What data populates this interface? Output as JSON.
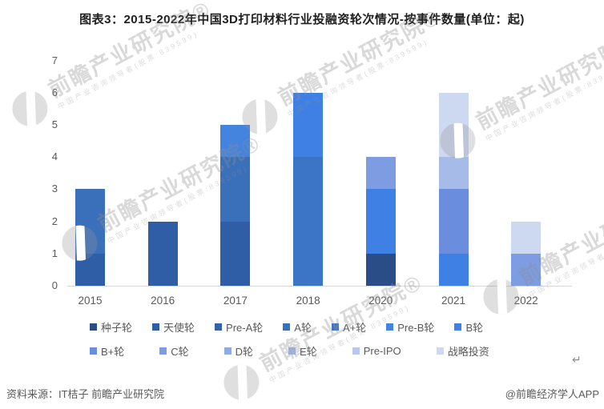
{
  "title": "图表3：2015-2022年中国3D打印材料行业投融资轮次情况-按事件数量(单位：起)",
  "footer": {
    "source": "资料来源：IT桔子 前瞻产业研究院",
    "credit": "@前瞻经济学人APP"
  },
  "watermark": {
    "main": "前瞻产业研究院®",
    "sub": "中国产业咨询领导者(股票:839599)"
  },
  "return_mark": "↵",
  "chart_data": {
    "type": "bar",
    "stacked": true,
    "title": "图表3：2015-2022年中国3D打印材料行业投融资轮次情况-按事件数量(单位：起)",
    "unit": "起",
    "xlabel": "",
    "ylabel": "",
    "ylim": [
      0,
      7
    ],
    "yticks": [
      0,
      1,
      2,
      3,
      4,
      5,
      6,
      7
    ],
    "grid": false,
    "legend_position": "bottom",
    "categories": [
      "2015",
      "2016",
      "2017",
      "2018",
      "2020",
      "2021",
      "2022"
    ],
    "totals": [
      3,
      2,
      5,
      6,
      4,
      6,
      2
    ],
    "series": [
      {
        "name": "种子轮",
        "color": "#2a4d87",
        "values": [
          0,
          0,
          0,
          0,
          1,
          0,
          0
        ]
      },
      {
        "name": "天使轮",
        "color": "#2f5da6",
        "values": [
          1,
          2,
          2,
          0,
          0,
          0,
          0
        ]
      },
      {
        "name": "Pre-A轮",
        "color": "#3463ab",
        "values": [
          0,
          0,
          0,
          0,
          0,
          0,
          0
        ]
      },
      {
        "name": "A轮",
        "color": "#3a6fba",
        "values": [
          2,
          0,
          2,
          0,
          0,
          0,
          0
        ]
      },
      {
        "name": "A+轮",
        "color": "#3c75c5",
        "values": [
          0,
          0,
          0,
          4,
          0,
          0,
          0
        ]
      },
      {
        "name": "Pre-B轮",
        "color": "#4483de",
        "values": [
          0,
          0,
          1,
          0,
          0,
          0,
          0
        ]
      },
      {
        "name": "B轮",
        "color": "#3f80e4",
        "values": [
          0,
          0,
          0,
          2,
          2,
          1,
          0
        ]
      },
      {
        "name": "B+轮",
        "color": "#6a8edd",
        "values": [
          0,
          0,
          0,
          0,
          0,
          2,
          0
        ]
      },
      {
        "name": "C轮",
        "color": "#7d9ce2",
        "values": [
          0,
          0,
          0,
          0,
          1,
          0,
          1
        ]
      },
      {
        "name": "D轮",
        "color": "#90abe3",
        "values": [
          0,
          0,
          0,
          0,
          0,
          0,
          0
        ]
      },
      {
        "name": "E轮",
        "color": "#a7bbe9",
        "values": [
          0,
          0,
          0,
          0,
          0,
          1,
          0
        ]
      },
      {
        "name": "Pre-IPO",
        "color": "#b9c8ee",
        "values": [
          0,
          0,
          0,
          0,
          0,
          0,
          0
        ]
      },
      {
        "name": "战略投资",
        "color": "#cdd8f1",
        "values": [
          0,
          0,
          0,
          0,
          0,
          2,
          1
        ]
      }
    ]
  }
}
